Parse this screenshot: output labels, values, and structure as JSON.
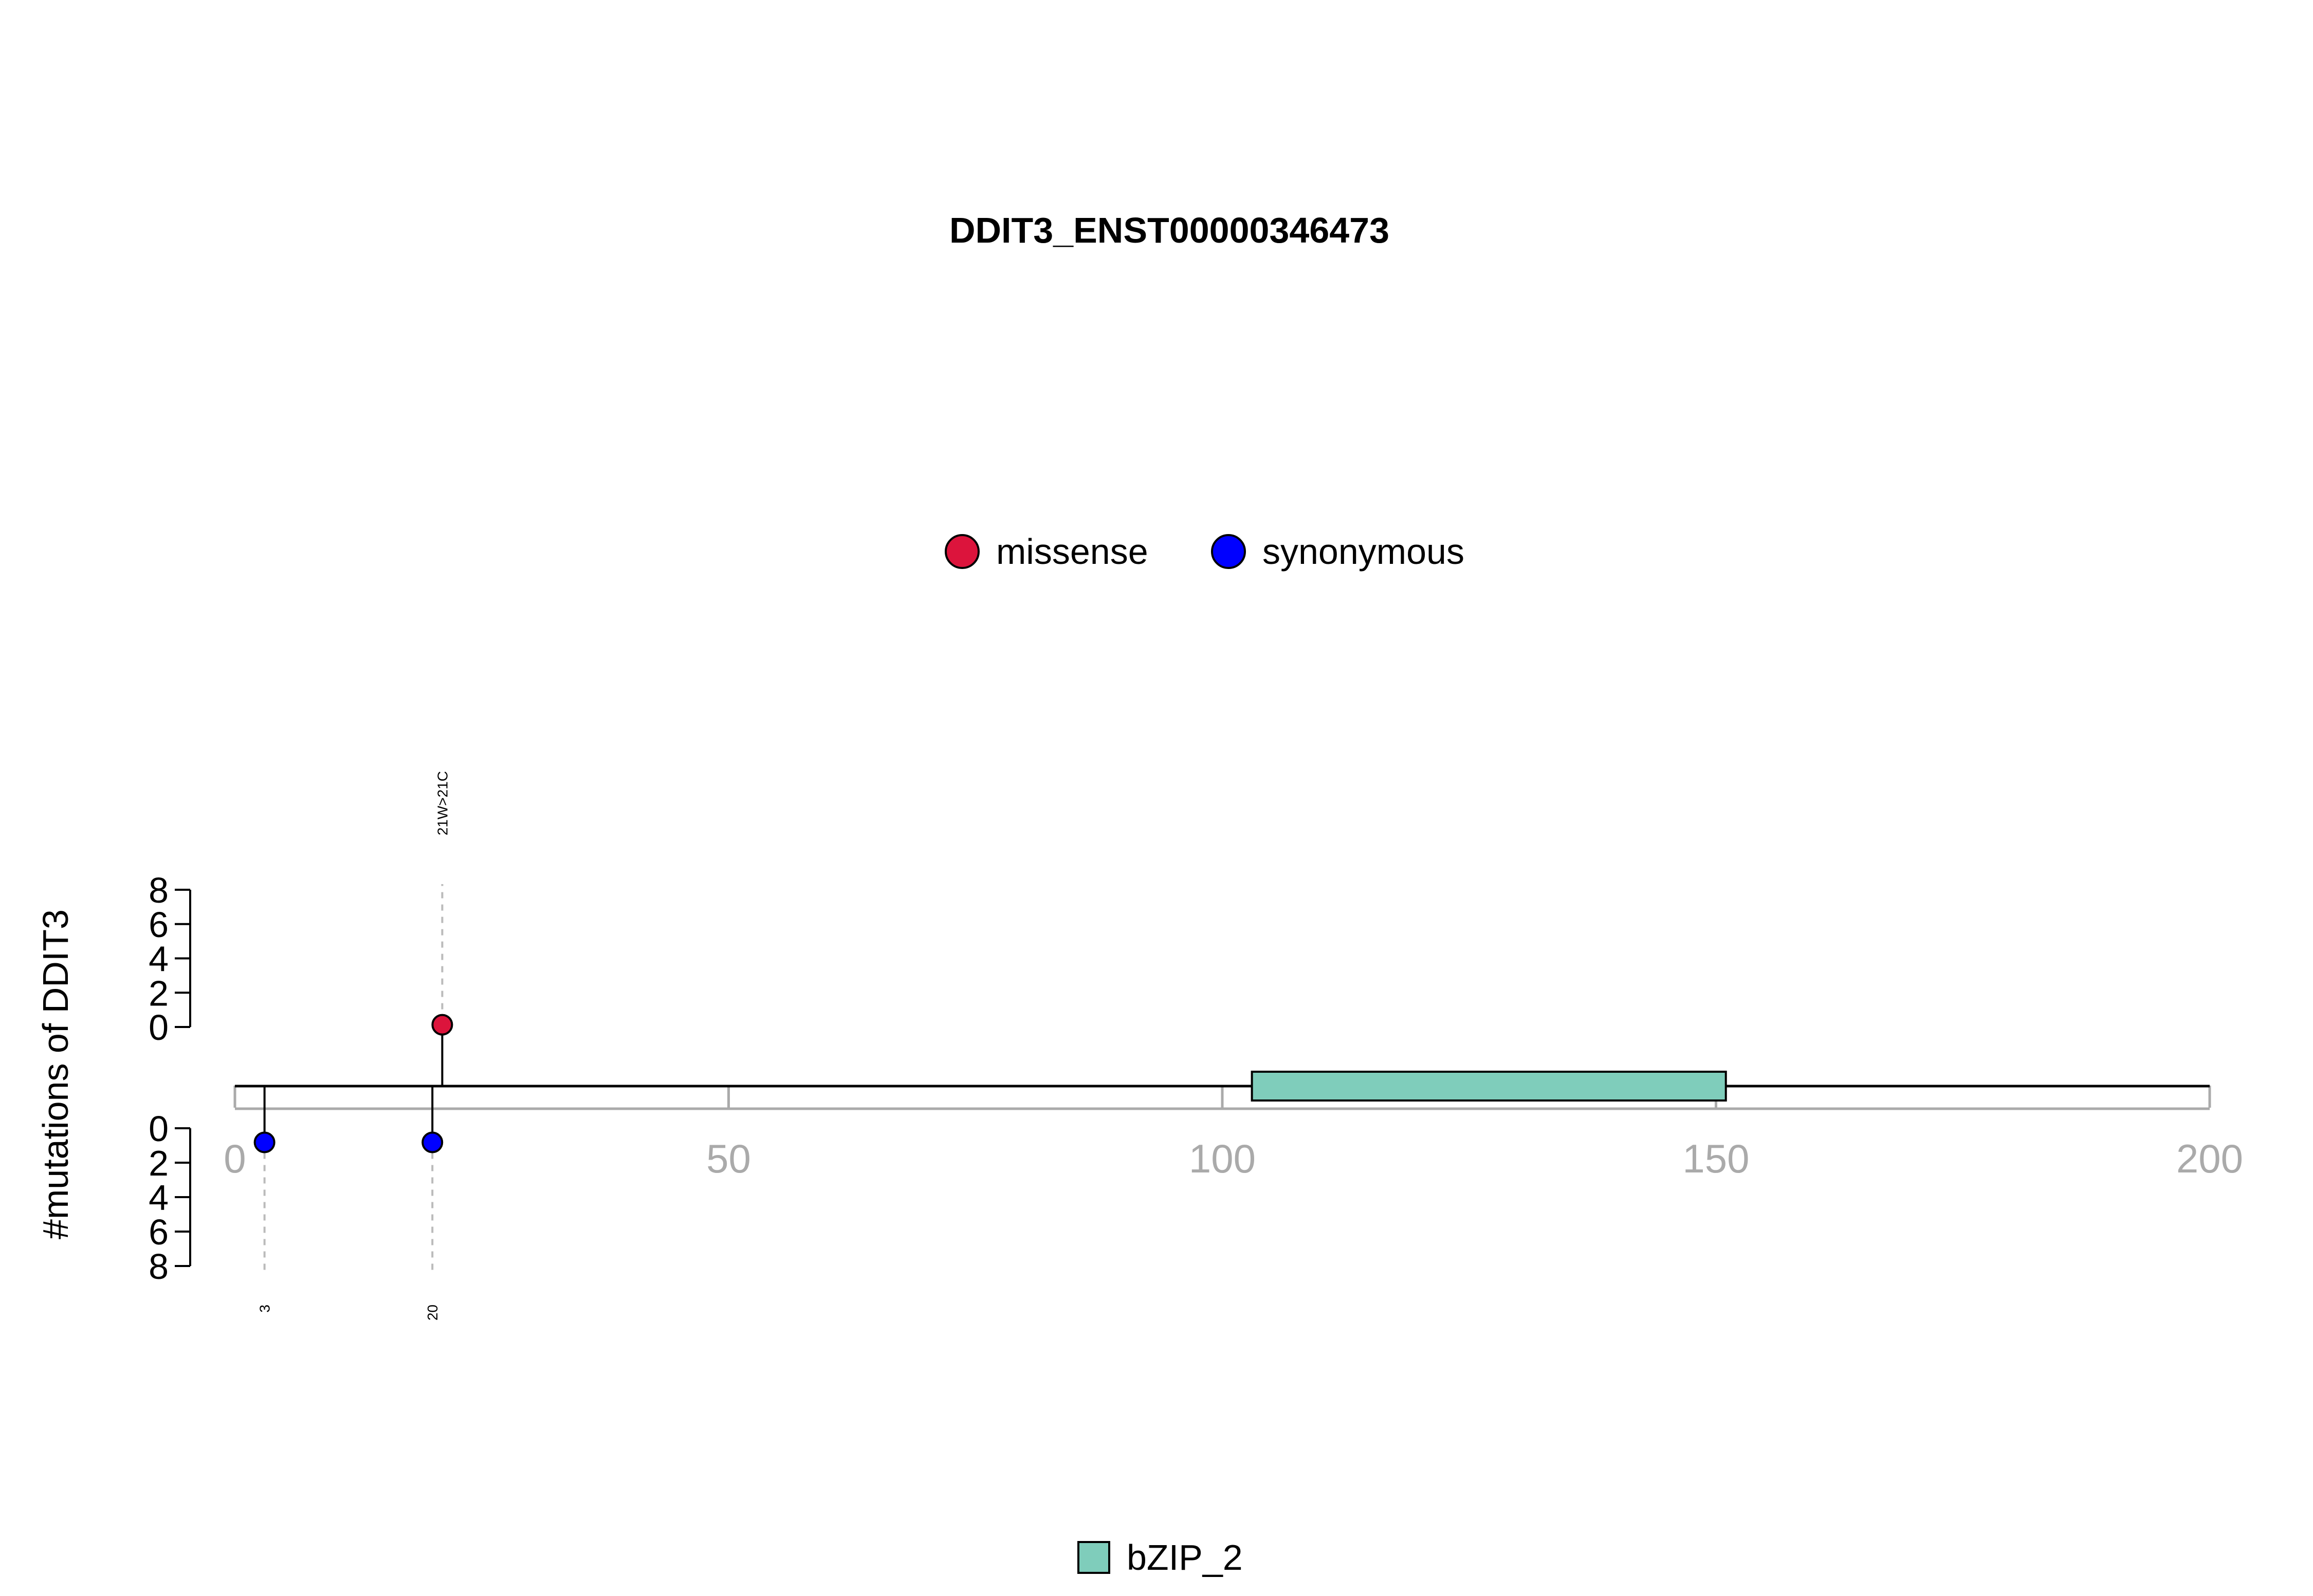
{
  "chart_data": {
    "type": "lollipop",
    "title": "DDIT3_ENST00000346473",
    "ylabel": "#mutations of DDIT3",
    "xlim": [
      0,
      200
    ],
    "x_ticks": [
      "0",
      "50",
      "100",
      "150",
      "200"
    ],
    "y_ticks_top": [
      "0",
      "2",
      "4",
      "6",
      "8"
    ],
    "y_ticks_bottom": [
      "0",
      "2",
      "4",
      "6",
      "8"
    ],
    "ylim": [
      0,
      8
    ],
    "protein_length": 200,
    "legend": [
      {
        "name": "missense",
        "color": "#dc143c"
      },
      {
        "name": "synonymous",
        "color": "#0000ff"
      }
    ],
    "domain_legend": [
      {
        "name": "bZIP_2",
        "color": "#7fcdbb"
      }
    ],
    "domains": [
      {
        "name": "bZIP_2",
        "start": 103,
        "end": 151,
        "color": "#7fcdbb"
      }
    ],
    "mutations": [
      {
        "position": 21,
        "count": 1,
        "type": "missense",
        "side": "top",
        "label": "21W>21C"
      },
      {
        "position": 3,
        "count": 1,
        "type": "synonymous",
        "side": "bottom",
        "label": "3"
      },
      {
        "position": 20,
        "count": 1,
        "type": "synonymous",
        "side": "bottom",
        "label": "20"
      }
    ]
  }
}
